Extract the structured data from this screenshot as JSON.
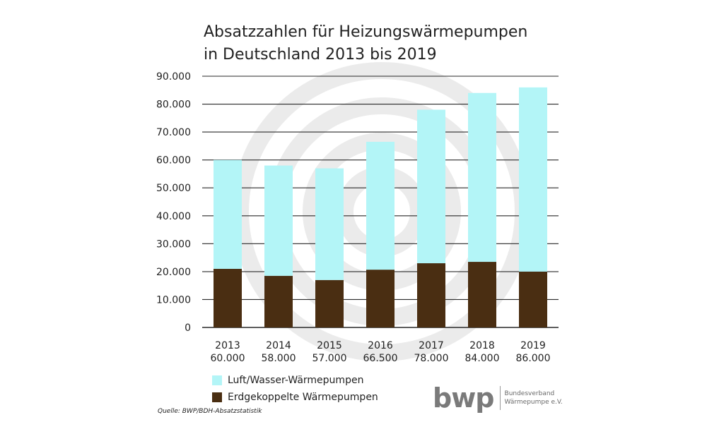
{
  "title_line1": "Absatzzahlen für Heizungswärmepumpen",
  "title_line2": "in Deutschland 2013 bis 2019",
  "source": "Quelle: BWP/BDH-Absatzstatistik",
  "logo": {
    "mark": "bwp",
    "text_line1": "Bundesverband",
    "text_line2": "Wärmepumpe e.V."
  },
  "colors": {
    "air_water": "#b3f5f7",
    "ground": "#4a2e12",
    "grid": "#2a2a2a",
    "watermark": "#ebebeb"
  },
  "chart_data": {
    "type": "bar",
    "stacked": true,
    "categories": [
      "2013",
      "2014",
      "2015",
      "2016",
      "2017",
      "2018",
      "2019"
    ],
    "category_totals": [
      "60.000",
      "58.000",
      "57.000",
      "66.500",
      "78.000",
      "84.000",
      "86.000"
    ],
    "series": [
      {
        "name": "Erdgekoppelte Wärmepumpen",
        "color": "#4a2e12",
        "values": [
          21000,
          18500,
          17000,
          20700,
          23000,
          23500,
          20000
        ]
      },
      {
        "name": "Luft/Wasser-Wärmepumpen",
        "color": "#b3f5f7",
        "values": [
          39000,
          39500,
          40000,
          45800,
          55000,
          60500,
          66000
        ]
      }
    ],
    "ylim": [
      0,
      90000
    ],
    "yticks": [
      0,
      10000,
      20000,
      30000,
      40000,
      50000,
      60000,
      70000,
      80000,
      90000
    ],
    "ytick_labels": [
      "0",
      "10.000",
      "20.000",
      "30.000",
      "40.000",
      "50.000",
      "60.000",
      "70.000",
      "80.000",
      "90.000"
    ],
    "grid": true,
    "legend_position": "bottom-left"
  }
}
